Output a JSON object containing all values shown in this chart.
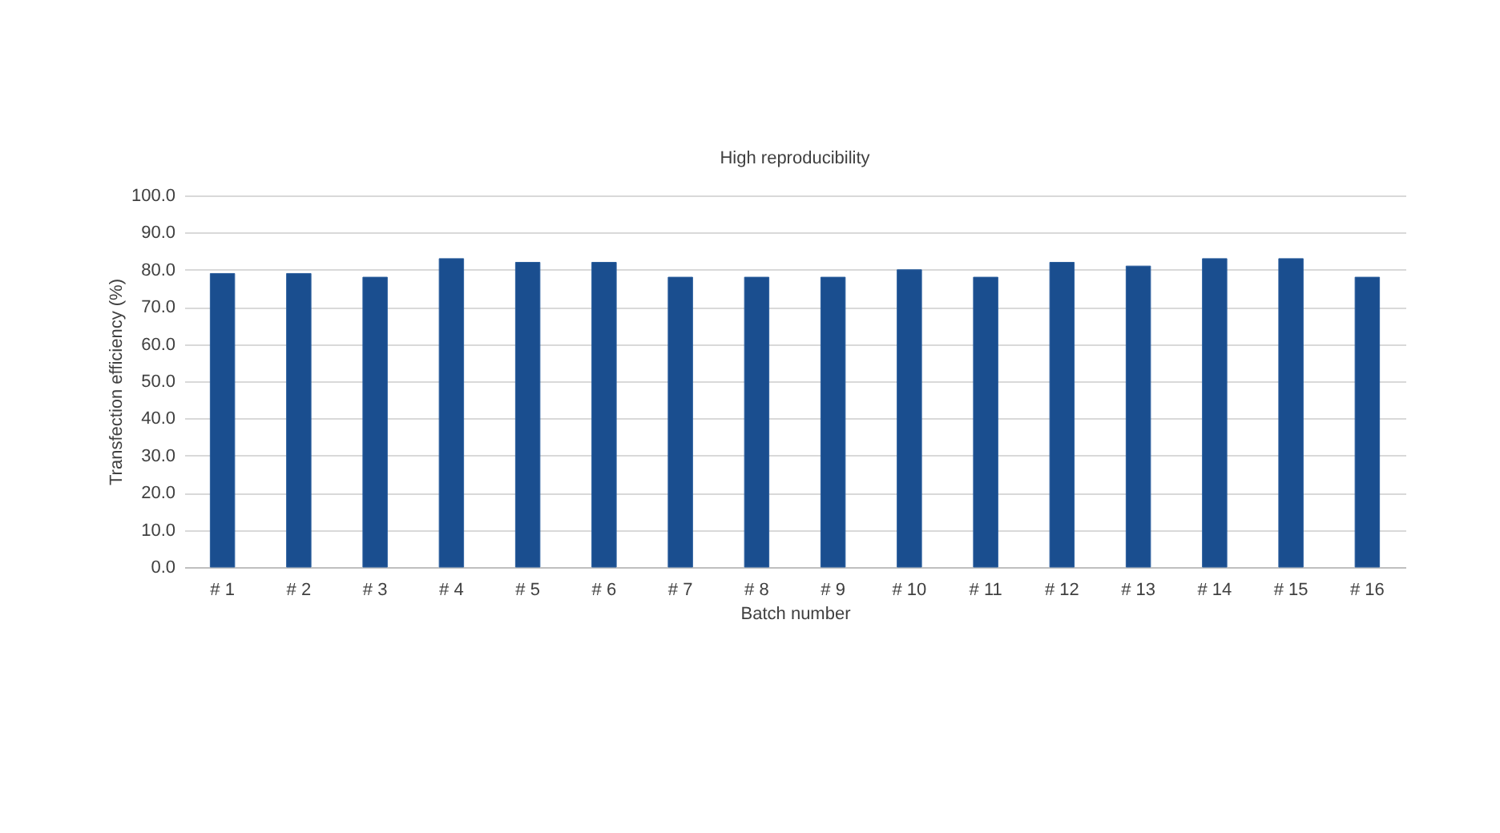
{
  "chart_data": {
    "type": "bar",
    "title": "High reproducibility",
    "xlabel": "Batch number",
    "ylabel": "Transfection efficiency (%)",
    "categories": [
      "# 1",
      "# 2",
      "# 3",
      "# 4",
      "# 5",
      "# 6",
      "# 7",
      "# 8",
      "# 9",
      "# 10",
      "# 11",
      "# 12",
      "# 13",
      "# 14",
      "# 15",
      "# 16"
    ],
    "values": [
      79,
      79,
      78,
      83,
      82,
      82,
      78,
      78,
      78,
      80,
      78,
      82,
      81,
      83,
      83,
      78
    ],
    "color": "#1a4e8f",
    "ylim": [
      0,
      100
    ],
    "yticks": [
      {
        "value": 0,
        "label": "0.0"
      },
      {
        "value": 10,
        "label": "10.0"
      },
      {
        "value": 20,
        "label": "20.0"
      },
      {
        "value": 30,
        "label": "30.0"
      },
      {
        "value": 40,
        "label": "40.0"
      },
      {
        "value": 50,
        "label": "50.0"
      },
      {
        "value": 60,
        "label": "60.0"
      },
      {
        "value": 70,
        "label": "70.0"
      },
      {
        "value": 80,
        "label": "80.0"
      },
      {
        "value": 90,
        "label": "90.0"
      },
      {
        "value": 100,
        "label": "100.0"
      }
    ],
    "grid": "y"
  }
}
